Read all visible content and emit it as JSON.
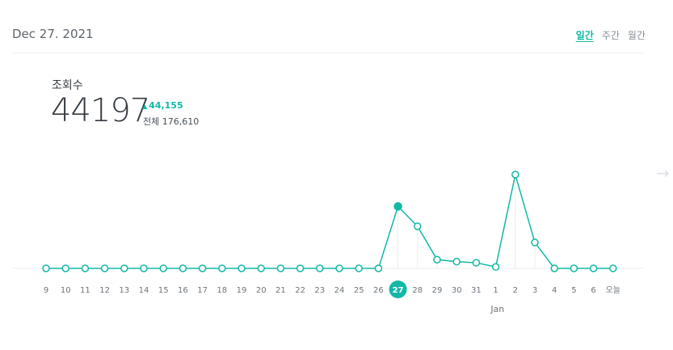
{
  "header": {
    "date": "Dec 27. 2021",
    "tabs": [
      {
        "label": "일간",
        "active": true
      },
      {
        "label": "주간",
        "active": false
      },
      {
        "label": "월간",
        "active": false
      }
    ]
  },
  "stats": {
    "label": "조회수",
    "value": "44197",
    "delta": "44,155",
    "total": "전체 176,610"
  },
  "nav": {
    "next_icon": "arrow-right-icon"
  },
  "colors": {
    "accent": "#12b8a6",
    "tick_text": "#6c757d",
    "baseline": "#e9ecef"
  },
  "chart_data": {
    "type": "line",
    "categories": [
      "9",
      "10",
      "11",
      "12",
      "13",
      "14",
      "15",
      "16",
      "17",
      "18",
      "19",
      "20",
      "21",
      "22",
      "23",
      "24",
      "25",
      "26",
      "27",
      "28",
      "29",
      "30",
      "31",
      "1",
      "2",
      "3",
      "4",
      "5",
      "6",
      "오늘"
    ],
    "values": [
      0,
      0,
      0,
      0,
      0,
      0,
      0,
      0,
      0,
      0,
      0,
      0,
      0,
      0,
      0,
      0,
      0,
      0,
      44197,
      30000,
      6200,
      4800,
      4000,
      1000,
      66900,
      18500,
      0,
      0,
      0,
      0
    ],
    "selected_index": 18,
    "month_labels": [
      {
        "index": 24,
        "label": "Jan"
      }
    ],
    "ylim": [
      0,
      70000
    ],
    "grid": false
  }
}
